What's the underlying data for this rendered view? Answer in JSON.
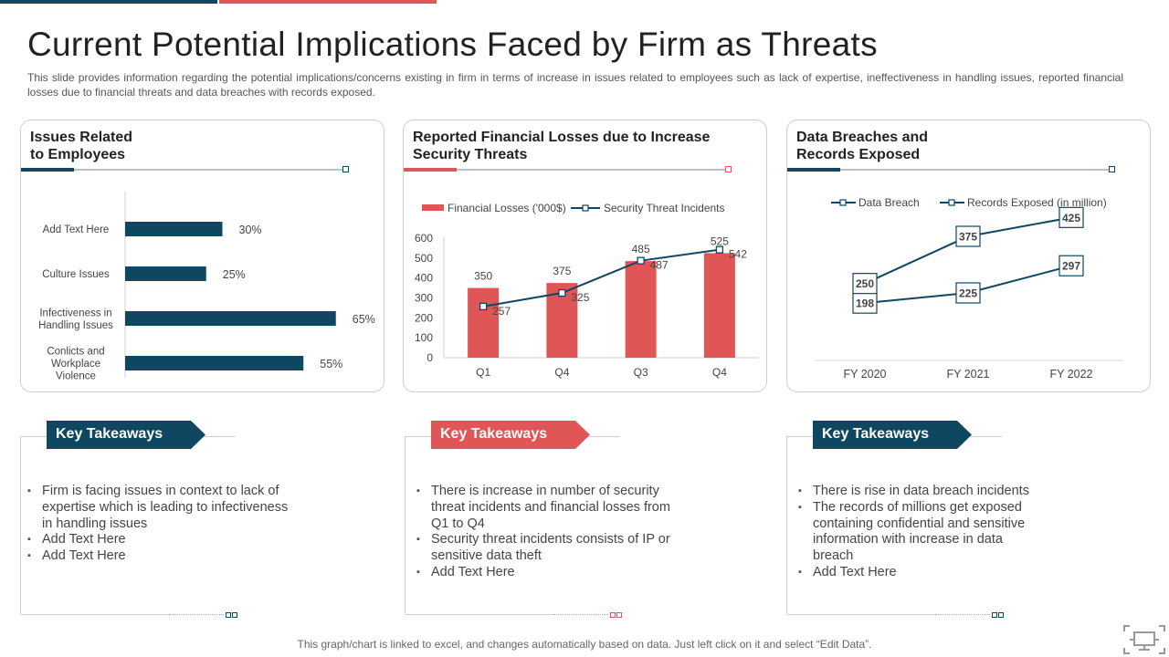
{
  "header": {
    "title": "Current Potential Implications Faced by Firm as Threats",
    "subtitle": "This slide provides information regarding the potential implications/concerns existing in firm in terms of increase in issues related to employees such as lack of expertise, ineffectiveness in handling issues, reported financial losses due to financial threats and data breaches with records exposed."
  },
  "colors": {
    "navy": "#0f4761",
    "red": "#e05656"
  },
  "panels": [
    {
      "title": "Issues Related\nto Employees"
    },
    {
      "title": "Reported Financial Losses due to Increase\nSecurity Threats"
    },
    {
      "title": "Data Breaches and\nRecords Exposed"
    }
  ],
  "chart_data": [
    {
      "type": "bar",
      "orientation": "horizontal",
      "title": "Issues Related to Employees",
      "categories": [
        "Add Text Here",
        "Culture Issues",
        "Infectiveness in\nHandling Issues",
        "Conlicts and\nWorkplace\nViolence"
      ],
      "values": [
        30,
        25,
        65,
        55
      ],
      "labels": [
        "30%",
        "25%",
        "65%",
        "55%"
      ],
      "xlim": [
        0,
        100
      ]
    },
    {
      "type": "bar",
      "title": "Reported Financial Losses due to Increase Security Threats",
      "categories": [
        "Q1",
        "Q4",
        "Q3",
        "Q4"
      ],
      "series": [
        {
          "name": "Financial Losses  ('000$)",
          "kind": "bar",
          "values": [
            350,
            375,
            485,
            525
          ]
        },
        {
          "name": "Security Threat Incidents",
          "kind": "line",
          "values": [
            257,
            325,
            487,
            542
          ]
        }
      ],
      "yticks": [
        "600",
        "500",
        "400",
        "300",
        "200",
        "100",
        "0"
      ],
      "ylim": [
        0,
        600
      ]
    },
    {
      "type": "line",
      "title": "Data Breaches and Records Exposed",
      "categories": [
        "FY 2020",
        "FY 2021",
        "FY 2022"
      ],
      "series": [
        {
          "name": "Data Breach",
          "values": [
            198,
            225,
            297
          ]
        },
        {
          "name": "Records Exposed (in million)",
          "values": [
            250,
            375,
            425
          ]
        }
      ]
    }
  ],
  "takeaways": [
    {
      "title": "Key Takeaways",
      "bullets": [
        "Firm is facing issues in context to lack of expertise which is leading to infectiveness in handling issues",
        "Add Text Here",
        "Add Text Here"
      ]
    },
    {
      "title": "Key Takeaways",
      "bullets": [
        "There is increase in number of security threat incidents and financial losses from Q1 to Q4",
        "Security threat incidents consists of IP or sensitive data theft",
        "Add Text Here"
      ]
    },
    {
      "title": "Key Takeaways",
      "bullets": [
        "There is rise in data breach incidents",
        "The records of millions get exposed containing confidential and sensitive information with increase in data breach",
        "Add Text Here"
      ]
    }
  ],
  "footer": "This graph/chart is linked to excel, and changes automatically based on data. Just left click on it and select “Edit Data”.",
  "icons": {
    "corner": "presentation-screen-icon"
  }
}
